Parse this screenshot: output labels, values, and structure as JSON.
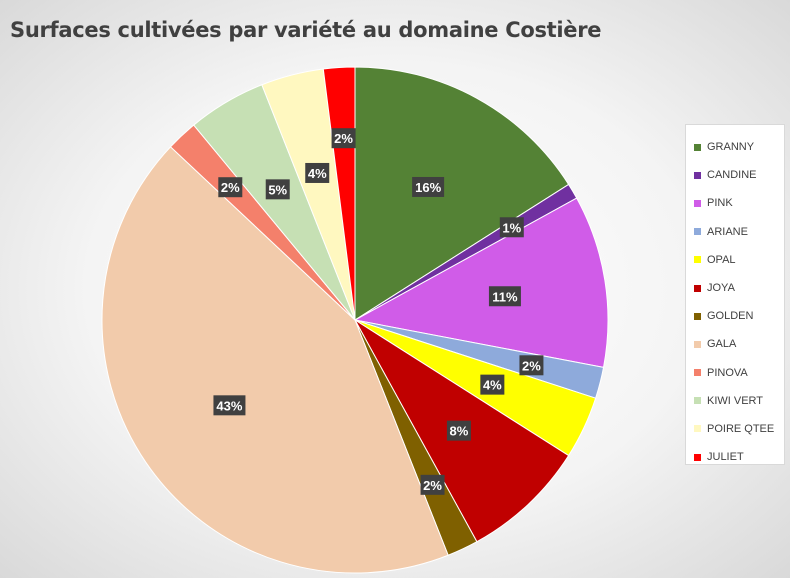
{
  "chart_data": {
    "type": "pie",
    "title": "Surfaces cultivées par variété au domaine Costière",
    "legend_position": "right",
    "slices": [
      {
        "name": "GRANNY",
        "value": 16,
        "label": "16%",
        "color": "#548235"
      },
      {
        "name": "CANDINE",
        "value": 1,
        "label": "1%",
        "color": "#7030a0"
      },
      {
        "name": "PINK",
        "value": 11,
        "label": "11%",
        "color": "#d05ce8"
      },
      {
        "name": "ARIANE",
        "value": 2,
        "label": "2%",
        "color": "#8eaadb"
      },
      {
        "name": "OPAL",
        "value": 4,
        "label": "4%",
        "color": "#ffff00"
      },
      {
        "name": "JOYA",
        "value": 8,
        "label": "8%",
        "color": "#c00000"
      },
      {
        "name": "GOLDEN",
        "value": 2,
        "label": "2%",
        "color": "#7f6000"
      },
      {
        "name": "GALA",
        "value": 43,
        "label": "43%",
        "color": "#f2cbab"
      },
      {
        "name": "PINOVA",
        "value": 2,
        "label": "2%",
        "color": "#f4806b"
      },
      {
        "name": "KIWI VERT",
        "value": 5,
        "label": "5%",
        "color": "#c6e0b4"
      },
      {
        "name": "POIRE QTEE",
        "value": 4,
        "label": "4%",
        "color": "#fff8c0"
      },
      {
        "name": "JULIET",
        "value": 2,
        "label": "2%",
        "color": "#ff0000"
      }
    ]
  }
}
